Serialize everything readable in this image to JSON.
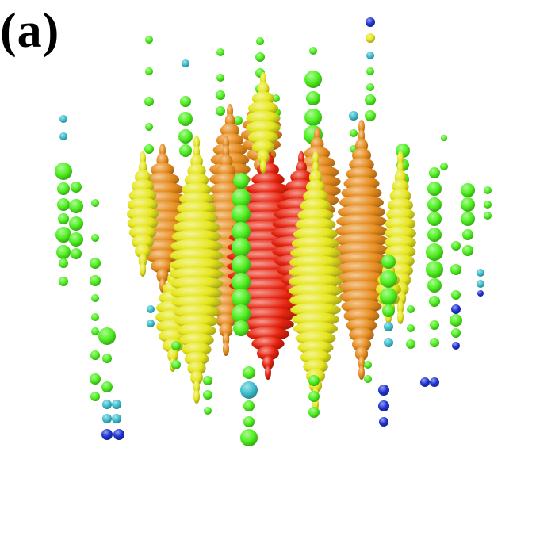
{
  "panel": {
    "label": "(a)"
  },
  "figure": {
    "title": "",
    "colors": {
      "background": "#ffffff",
      "low": "#1e32d2",
      "mid_low": "#3cbecd",
      "mid": "#4ef01e",
      "mid_high": "#e6e61e",
      "high": "#e68c1e",
      "max": "#e6230f"
    },
    "color_scale": [
      "low",
      "mid_low",
      "mid",
      "mid_high",
      "high",
      "max"
    ]
  }
}
